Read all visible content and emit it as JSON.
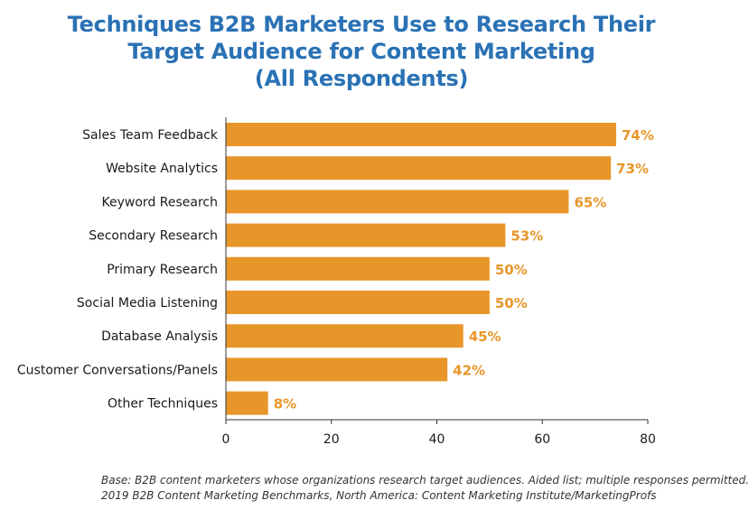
{
  "chart_data": {
    "type": "bar",
    "orientation": "horizontal",
    "title_lines": [
      "Techniques B2B Marketers Use to Research Their",
      "Target Audience for Content Marketing",
      "(All Respondents)"
    ],
    "categories": [
      "Sales Team Feedback",
      "Website Analytics",
      "Keyword Research",
      "Secondary Research",
      "Primary Research",
      "Social Media Listening",
      "Database Analysis",
      "Customer Conversations/Panels",
      "Other Techniques"
    ],
    "values": [
      74,
      73,
      65,
      53,
      50,
      50,
      45,
      42,
      8
    ],
    "value_labels": [
      "74%",
      "73%",
      "65%",
      "53%",
      "50%",
      "50%",
      "45%",
      "42%",
      "8%"
    ],
    "xlim": [
      0,
      80
    ],
    "xticks": [
      0,
      20,
      40,
      60,
      80
    ],
    "xtick_labels": [
      "0",
      "20",
      "40",
      "60",
      "80"
    ],
    "grid": false,
    "legend": "none",
    "colors": {
      "bar": "#e8962a",
      "value_label": "#e8962a",
      "title": "#2a72b5",
      "axis": "#333333"
    }
  },
  "footnote": {
    "line1": "Base: B2B content marketers whose organizations research target audiences. Aided list; multiple responses permitted.",
    "line2": "2019 B2B Content Marketing Benchmarks, North America: Content Marketing Institute/MarketingProfs"
  }
}
